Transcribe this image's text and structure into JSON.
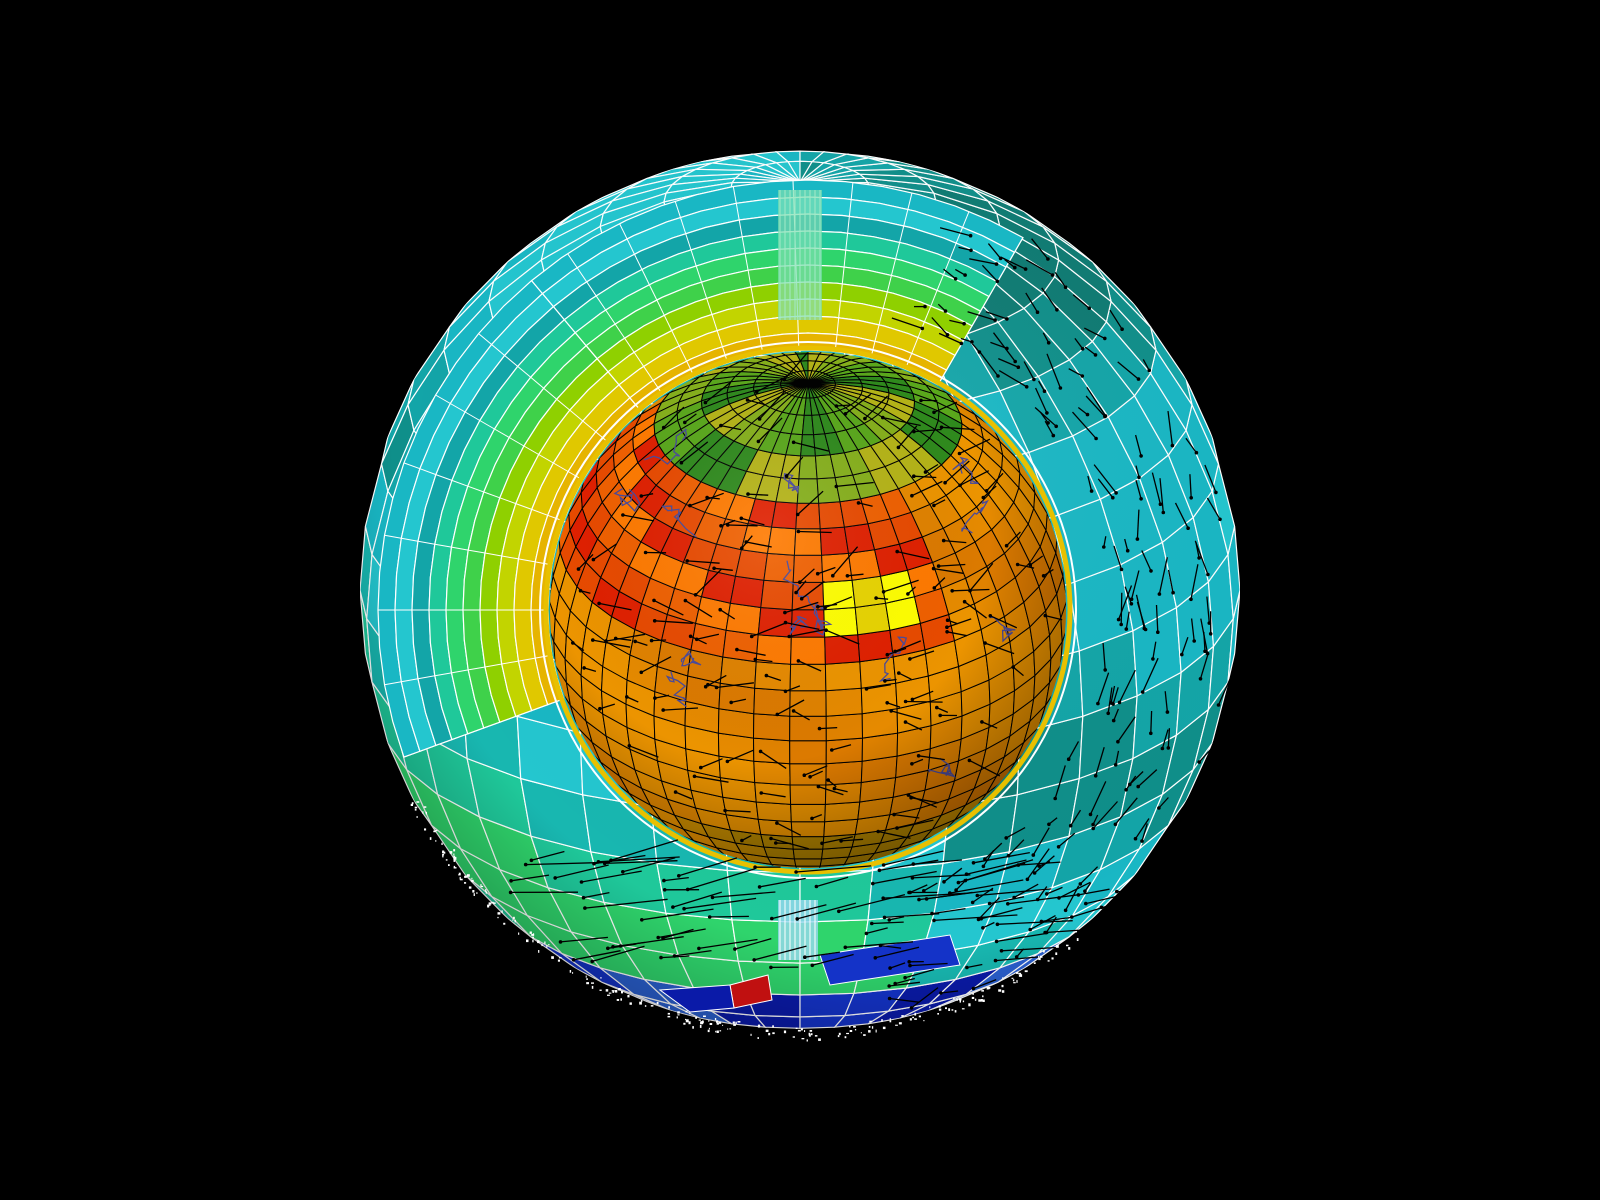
{
  "scene": {
    "background": "#000000",
    "outer_palette": [
      "#0e7b73",
      "#0f8f8a",
      "#13a5a8",
      "#19b7c4",
      "#24c6cf",
      "#18b7b0",
      "#1fc89a",
      "#2fd46c",
      "#3fd14a",
      "#5ccf20",
      "#8fd000",
      "#c2d400",
      "#e0c800",
      "#e6b400"
    ],
    "inner_palette": [
      "#d36a00",
      "#dc7a00",
      "#e08200",
      "#e68a00",
      "#ec9400",
      "#d09000",
      "#c68c00",
      "#b58600",
      "#a28200"
    ],
    "hot_colors": [
      "#e02000",
      "#e84a00",
      "#f06000",
      "#ff7a00",
      "#e8d400",
      "#ffff00"
    ],
    "cold_colors": [
      "#1433c8",
      "#0a1aa8",
      "#2a60d0",
      "#c01010"
    ],
    "cap_colors": [
      "#2f8a1d",
      "#5aa81c",
      "#86b01c",
      "#b5b418"
    ],
    "grid_outer": "#ffffff",
    "grid_inner": "#000000",
    "coastline": "#4a4a9a",
    "vector_color": "#000000",
    "scatter_color": "#ffffff"
  }
}
